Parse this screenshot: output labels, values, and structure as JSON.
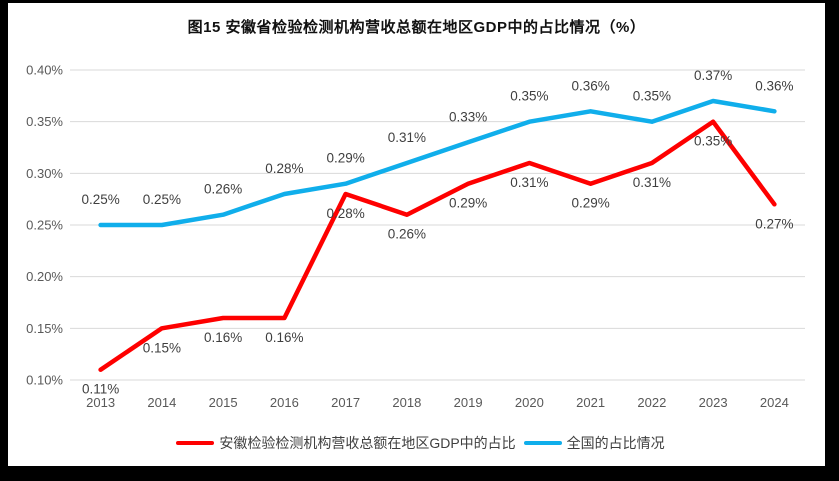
{
  "chart": {
    "title": "图15 安徽省检验检测机构营收总额在地区GDP中的占比情况（%）",
    "colors": {
      "anhui_line": "#fe0000",
      "national_line": "#10aeeb",
      "gridline": "#d9d9d9",
      "frame_border": "#000000"
    },
    "legend": [
      {
        "label": "安徽检验检测机构营收总额在地区GDP中的占比",
        "color": "#fe0000"
      },
      {
        "label": "全国的占比情况",
        "color": "#10aeeb"
      }
    ]
  },
  "chart_data": {
    "type": "line",
    "title": "图15 安徽省检验检测机构营收总额在地区GDP中的占比情况（%）",
    "categories": [
      "2013",
      "2014",
      "2015",
      "2016",
      "2017",
      "2018",
      "2019",
      "2020",
      "2021",
      "2022",
      "2023",
      "2024"
    ],
    "series": [
      {
        "name": "安徽检验检测机构营收总额在地区GDP中的占比",
        "color": "#fe0000",
        "values": [
          0.11,
          0.15,
          0.16,
          0.16,
          0.28,
          0.26,
          0.29,
          0.31,
          0.29,
          0.31,
          0.35,
          0.27
        ],
        "labels": [
          "0.11%",
          "0.15%",
          "0.16%",
          "0.16%",
          "0.28%",
          "0.26%",
          "0.29%",
          "0.31%",
          "0.29%",
          "0.31%",
          "0.35%",
          "0.27%"
        ],
        "label_position": "below"
      },
      {
        "name": "全国的占比情况",
        "color": "#10aeeb",
        "values": [
          0.25,
          0.25,
          0.26,
          0.28,
          0.29,
          0.31,
          0.33,
          0.35,
          0.36,
          0.35,
          0.37,
          0.36
        ],
        "labels": [
          "0.25%",
          "0.25%",
          "0.26%",
          "0.28%",
          "0.29%",
          "0.31%",
          "0.33%",
          "0.35%",
          "0.36%",
          "0.35%",
          "0.37%",
          "0.36%"
        ],
        "label_position": "above"
      }
    ],
    "y_axis": {
      "min": 0.1,
      "max": 0.4,
      "ticks": [
        "0.40%",
        "0.35%",
        "0.30%",
        "0.25%",
        "0.20%",
        "0.15%",
        "0.10%"
      ]
    },
    "xlabel": "",
    "ylabel": "",
    "grid": "horizontal",
    "legend_position": "bottom"
  }
}
